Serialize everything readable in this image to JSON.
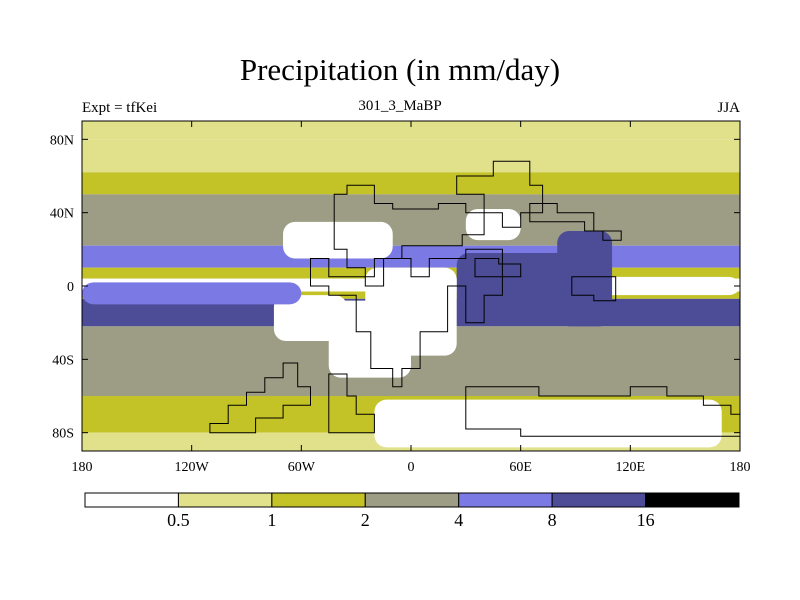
{
  "header": {
    "title": "Precipitation (in mm/day)",
    "left_label": "Expt = tfKei",
    "center_label": "301_3_MaBP",
    "right_label": "JJA"
  },
  "chart_data": {
    "type": "heatmap",
    "title": "Precipitation (in mm/day)",
    "subtitle": "301_3_MaBP",
    "experiment": "Expt = tfKei",
    "season": "JJA",
    "units": "mm/day",
    "xlim": [
      -180,
      180
    ],
    "ylim": [
      -90,
      90
    ],
    "x_ticks": [
      {
        "value": -180,
        "label": "180"
      },
      {
        "value": -120,
        "label": "120W"
      },
      {
        "value": -60,
        "label": "60W"
      },
      {
        "value": 0,
        "label": "0"
      },
      {
        "value": 60,
        "label": "60E"
      },
      {
        "value": 120,
        "label": "120E"
      },
      {
        "value": 180,
        "label": "180"
      }
    ],
    "y_ticks": [
      {
        "value": 80,
        "label": "80N"
      },
      {
        "value": 40,
        "label": "40N"
      },
      {
        "value": 0,
        "label": "0"
      },
      {
        "value": -40,
        "label": "40S"
      },
      {
        "value": -80,
        "label": "80S"
      }
    ],
    "levels": [
      {
        "range": "< 0.5",
        "color": "#ffffff"
      },
      {
        "range": "0.5 - 1",
        "color": "#e1e08b"
      },
      {
        "range": "1 - 2",
        "color": "#c3c226"
      },
      {
        "range": "2 - 4",
        "color": "#9d9d85"
      },
      {
        "range": "4 - 8",
        "color": "#7b79e3"
      },
      {
        "range": "8 - 16",
        "color": "#4c4c97"
      },
      {
        "range": "> 16",
        "color": "#000000"
      }
    ],
    "colorbar_labels": [
      "0.5",
      "1",
      "2",
      "4",
      "8",
      "16"
    ],
    "bands": [
      {
        "lat": [
          80,
          90
        ],
        "level": 1
      },
      {
        "lat": [
          62,
          80
        ],
        "level": 1
      },
      {
        "lat": [
          50,
          62
        ],
        "level": 2
      },
      {
        "lat": [
          22,
          50
        ],
        "level": 3
      },
      {
        "lat": [
          10,
          22
        ],
        "level": 4
      },
      {
        "lat": [
          4,
          10
        ],
        "level": 2
      },
      {
        "lat": [
          -3,
          4
        ],
        "level": 0
      },
      {
        "lat": [
          -7,
          -3
        ],
        "level": 2
      },
      {
        "lat": [
          -22,
          -7
        ],
        "level": 5
      },
      {
        "lat": [
          -60,
          -22
        ],
        "level": 3
      },
      {
        "lat": [
          -80,
          -60
        ],
        "level": 2
      },
      {
        "lat": [
          -90,
          -80
        ],
        "level": 1
      }
    ],
    "patches": [
      {
        "lon": [
          -45,
          0
        ],
        "lat": [
          -50,
          -8
        ],
        "level": 0
      },
      {
        "lon": [
          -75,
          -35
        ],
        "lat": [
          -30,
          -5
        ],
        "level": 0
      },
      {
        "lon": [
          -70,
          -10
        ],
        "lat": [
          15,
          35
        ],
        "level": 0
      },
      {
        "lon": [
          30,
          60
        ],
        "lat": [
          25,
          42
        ],
        "level": 0
      },
      {
        "lon": [
          -20,
          170
        ],
        "lat": [
          -88,
          -62
        ],
        "level": 0
      },
      {
        "lon": [
          100,
          180
        ],
        "lat": [
          -5,
          5
        ],
        "level": 0
      },
      {
        "lon": [
          25,
          100
        ],
        "lat": [
          -18,
          18
        ],
        "level": 5
      },
      {
        "lon": [
          80,
          110
        ],
        "lat": [
          -22,
          30
        ],
        "level": 5
      },
      {
        "lon": [
          -25,
          25
        ],
        "lat": [
          -38,
          10
        ],
        "level": 0
      },
      {
        "lon": [
          -180,
          -60
        ],
        "lat": [
          -10,
          2
        ],
        "level": 4
      }
    ],
    "grid": false,
    "legend": "bottom"
  }
}
